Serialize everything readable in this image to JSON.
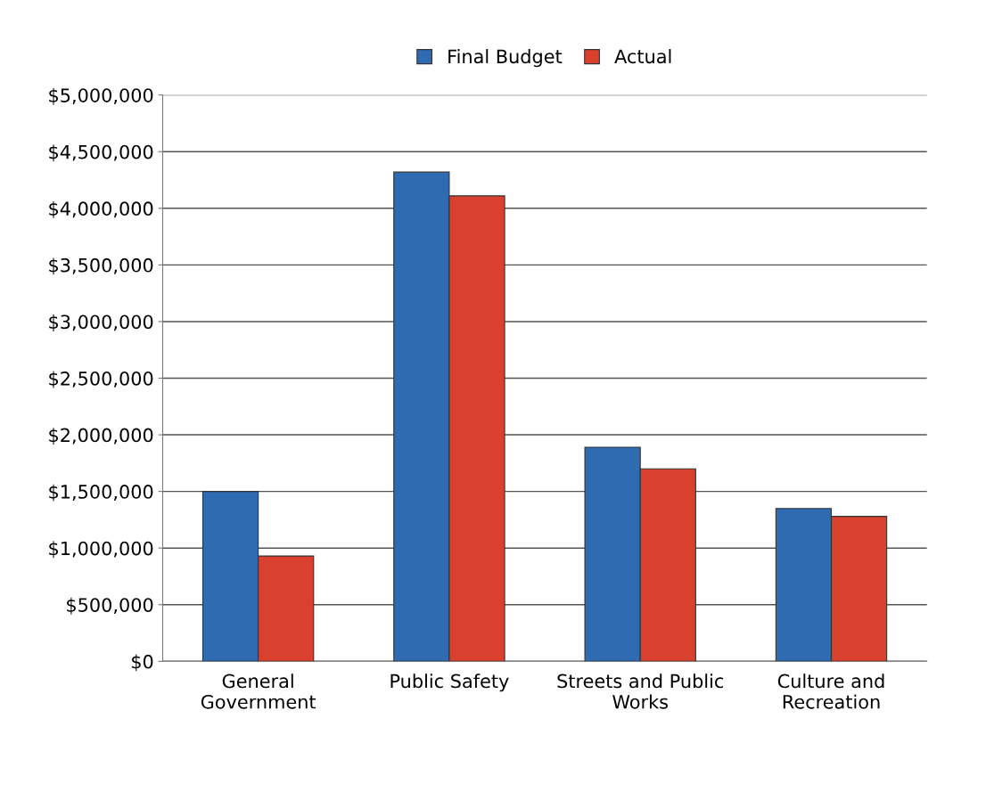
{
  "chart_data": {
    "type": "bar",
    "categories": [
      "General\nGovernment",
      "Public Safety",
      "Streets and Public\nWorks",
      "Culture and\nRecreation"
    ],
    "series": [
      {
        "name": "Final Budget",
        "color": "#2e6bb0",
        "values": [
          1500000,
          4320000,
          1890000,
          1350000
        ]
      },
      {
        "name": "Actual",
        "color": "#d9402e",
        "values": [
          930000,
          4110000,
          1700000,
          1280000
        ]
      }
    ],
    "ylim": [
      0,
      5000000
    ],
    "yticks": [
      {
        "value": 0,
        "label": "$0"
      },
      {
        "value": 500000,
        "label": "$500,000"
      },
      {
        "value": 1000000,
        "label": "$1,000,000"
      },
      {
        "value": 1500000,
        "label": "$1,500,000"
      },
      {
        "value": 2000000,
        "label": "$2,000,000"
      },
      {
        "value": 2500000,
        "label": "$2,500,000"
      },
      {
        "value": 3000000,
        "label": "$3,000,000"
      },
      {
        "value": 3500000,
        "label": "$3,500,000"
      },
      {
        "value": 4000000,
        "label": "$4,000,000"
      },
      {
        "value": 4500000,
        "label": "$4,500,000"
      },
      {
        "value": 5000000,
        "label": "$5,000,000"
      }
    ],
    "grid": "y",
    "legend": "top"
  }
}
